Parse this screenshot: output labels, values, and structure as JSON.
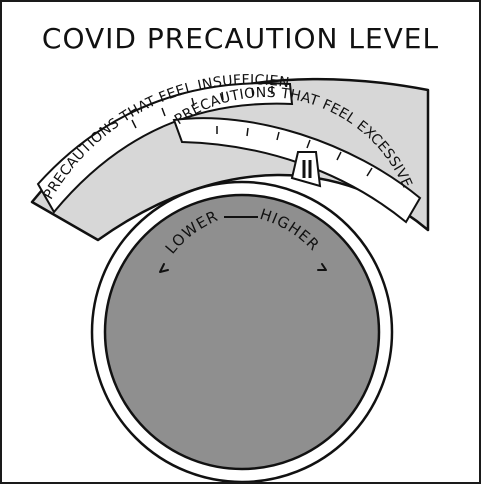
{
  "title": "COVID PRECAUTION LEVEL",
  "dial": {
    "outer_label": "PRECAUTIONS THAT FEEL INSUFFICIENT",
    "inner_label": "PRECAUTIONS THAT FEEL EXCESSIVE",
    "lower_label": "LOWER",
    "higher_label": "HIGHER"
  },
  "colors": {
    "knob_fill": "#8f8f8f",
    "band_fill": "#d7d7d7",
    "ink": "#111111"
  }
}
